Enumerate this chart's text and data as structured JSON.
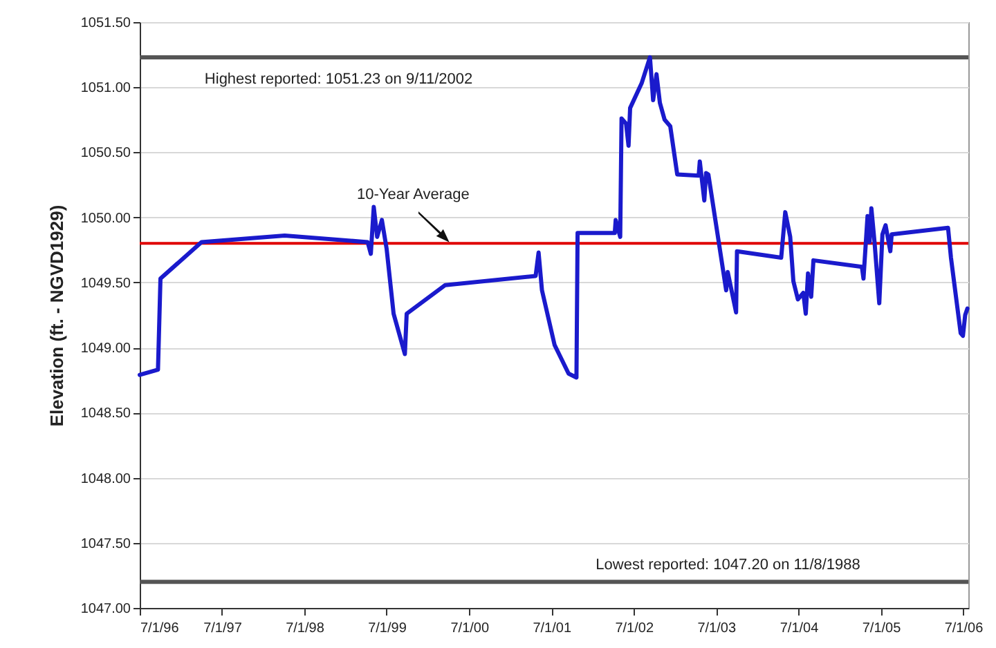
{
  "chart_data": {
    "type": "line",
    "ylabel": "Elevation (ft. - NGVD1929)",
    "x": [
      "1996-07-01",
      "1996-09-20",
      "1996-10-01",
      "1997-04-01",
      "1998-04-05",
      "1999-04-08",
      "1999-04-22",
      "1999-05-05",
      "1999-05-20",
      "1999-06-10",
      "1999-07-01",
      "1999-08-01",
      "1999-09-20",
      "1999-09-28",
      "2000-03-17",
      "2001-04-22",
      "2001-05-05",
      "2001-05-20",
      "2001-07-15",
      "2001-09-15",
      "2001-10-20",
      "2001-10-25",
      "2002-04-08",
      "2002-04-12",
      "2002-05-02",
      "2002-05-08",
      "2002-05-28",
      "2002-06-08",
      "2002-06-15",
      "2002-08-05",
      "2002-09-11",
      "2002-09-25",
      "2002-10-10",
      "2002-10-25",
      "2002-11-15",
      "2002-12-10",
      "2003-01-10",
      "2003-04-15",
      "2003-04-20",
      "2003-05-10",
      "2003-05-18",
      "2003-05-28",
      "2003-08-15",
      "2003-08-22",
      "2003-09-28",
      "2003-10-02",
      "2004-04-15",
      "2004-05-03",
      "2004-05-25",
      "2004-06-08",
      "2004-06-28",
      "2004-07-22",
      "2004-08-02",
      "2004-08-12",
      "2004-08-26",
      "2004-09-05",
      "2005-04-08",
      "2005-04-15",
      "2005-05-03",
      "2005-05-12",
      "2005-05-20",
      "2005-06-03",
      "2005-06-24",
      "2005-07-08",
      "2005-07-22",
      "2005-08-12",
      "2005-08-18",
      "2006-04-25",
      "2006-05-08",
      "2006-06-20",
      "2006-06-30",
      "2006-07-10",
      "2006-07-20"
    ],
    "series": [
      {
        "color": "#1a1acc",
        "values": [
          1048.79,
          1048.83,
          1049.53,
          1049.81,
          1049.86,
          1049.81,
          1049.72,
          1050.08,
          1049.85,
          1049.98,
          1049.76,
          1049.26,
          1048.95,
          1049.26,
          1049.48,
          1049.55,
          1049.73,
          1049.44,
          1049.02,
          1048.8,
          1048.77,
          1049.88,
          1049.88,
          1049.98,
          1049.85,
          1050.76,
          1050.72,
          1050.55,
          1050.84,
          1051.03,
          1051.23,
          1050.9,
          1051.1,
          1050.88,
          1050.75,
          1050.7,
          1050.33,
          1050.32,
          1050.43,
          1050.13,
          1050.34,
          1050.33,
          1049.44,
          1049.58,
          1049.27,
          1049.74,
          1049.69,
          1050.04,
          1049.85,
          1049.51,
          1049.37,
          1049.42,
          1049.26,
          1049.57,
          1049.39,
          1049.67,
          1049.62,
          1049.53,
          1050.01,
          1049.81,
          1050.07,
          1049.81,
          1049.34,
          1049.87,
          1049.94,
          1049.74,
          1049.87,
          1049.92,
          1049.69,
          1049.11,
          1049.09,
          1049.25,
          1049.3
        ]
      }
    ],
    "xlim": [
      "1996-07-01",
      "2006-07-24"
    ],
    "xticks": [
      {
        "value": "1996-07-01",
        "label": "7/1/96"
      },
      {
        "value": "1997-07-01",
        "label": "7/1/97"
      },
      {
        "value": "1998-07-01",
        "label": "7/1/98"
      },
      {
        "value": "1999-07-01",
        "label": "7/1/99"
      },
      {
        "value": "2000-07-01",
        "label": "7/1/00"
      },
      {
        "value": "2001-07-01",
        "label": "7/1/01"
      },
      {
        "value": "2002-07-01",
        "label": "7/1/02"
      },
      {
        "value": "2003-07-01",
        "label": "7/1/03"
      },
      {
        "value": "2004-07-01",
        "label": "7/1/04"
      },
      {
        "value": "2005-07-01",
        "label": "7/1/05"
      },
      {
        "value": "2006-07-01",
        "label": "7/1/06"
      }
    ],
    "ylim": [
      1047,
      1051.5
    ],
    "yticks": [
      {
        "value": 1047,
        "label": "1047.00"
      },
      {
        "value": 1047.5,
        "label": "1047.50"
      },
      {
        "value": 1048,
        "label": "1048.00"
      },
      {
        "value": 1048.5,
        "label": "1048.50"
      },
      {
        "value": 1049,
        "label": "1049.00"
      },
      {
        "value": 1049.5,
        "label": "1049.50"
      },
      {
        "value": 1050,
        "label": "1050.00"
      },
      {
        "value": 1050.5,
        "label": "1050.50"
      },
      {
        "value": 1051,
        "label": "1051.00"
      },
      {
        "value": 1051.5,
        "label": "1051.50"
      }
    ],
    "grid": "y",
    "line_style": "solid",
    "marker": "none",
    "ref_lines": [
      {
        "axis": "y",
        "value": 1051.23,
        "label": "Highest reported:  1051.23 on 9/11/2002",
        "color": "#555555"
      },
      {
        "axis": "y",
        "value": 1049.8,
        "label": "10-Year Average",
        "color": "#e00000"
      },
      {
        "axis": "y",
        "value": 1047.2,
        "label": "Lowest reported:  1047.20 on 11/8/1988",
        "color": "#555555"
      }
    ]
  }
}
